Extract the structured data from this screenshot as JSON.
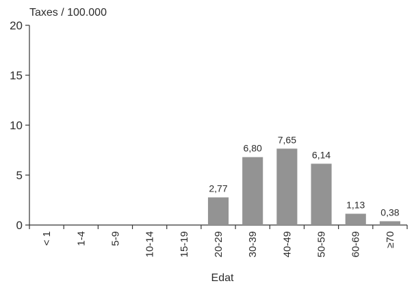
{
  "chart_data": {
    "type": "bar",
    "ylabel": "Taxes / 100.000",
    "xlabel": "Edat",
    "ylim": [
      0,
      20
    ],
    "yticks": [
      "0",
      "5",
      "10",
      "15",
      "20"
    ],
    "categories": [
      "< 1",
      "1-4",
      "5-9",
      "10-14",
      "15-19",
      "20-29",
      "30-39",
      "40-49",
      "50-59",
      "60-69",
      "≥70"
    ],
    "values": [
      0,
      0,
      0,
      0,
      0,
      2.77,
      6.8,
      7.65,
      6.14,
      1.13,
      0.38
    ],
    "data_labels": [
      "",
      "",
      "",
      "",
      "",
      "2,77",
      "6,80",
      "7,65",
      "6,14",
      "1,13",
      "0,38"
    ],
    "bar_color": "#939393",
    "grid": false,
    "legend": "none"
  }
}
